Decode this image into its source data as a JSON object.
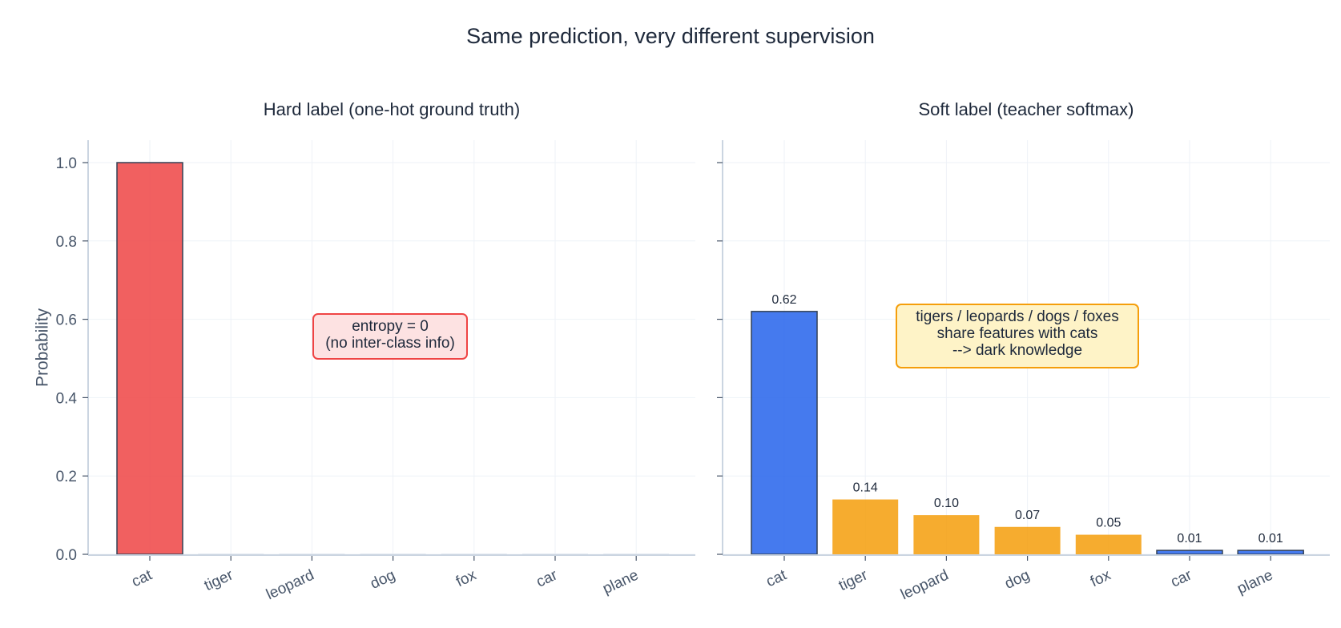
{
  "figure": {
    "title": "Same prediction, very different supervision"
  },
  "left_panel": {
    "title": "Hard label  (one-hot ground truth)",
    "ylabel": "Probability",
    "annotation_line1": "entropy = 0",
    "annotation_line2": "(no inter-class info)"
  },
  "right_panel": {
    "title": "Soft label  (teacher softmax)",
    "annotation_line1": "tigers / leopards / dogs / foxes",
    "annotation_line2": "share features with cats",
    "annotation_line3": "--> dark knowledge"
  },
  "colors": {
    "hard_bar": "#ef4444",
    "soft_target": "#2563eb",
    "soft_related": "#f59e0b",
    "soft_unrelated": "#2563eb",
    "axis": "#cbd5e1",
    "grid": "#eef2f7",
    "hard_annot_bg": "#fde2e2",
    "hard_annot_border": "#ef4444",
    "soft_annot_bg": "#fef3c7",
    "soft_annot_border": "#f59e0b"
  },
  "chart_data": [
    {
      "type": "bar",
      "title": "Hard label  (one-hot ground truth)",
      "categories": [
        "cat",
        "tiger",
        "leopard",
        "dog",
        "fox",
        "car",
        "plane"
      ],
      "values": [
        1.0,
        0,
        0,
        0,
        0,
        0,
        0
      ],
      "xlabel": "",
      "ylabel": "Probability",
      "ylim": [
        0,
        1.05
      ],
      "yticks": [
        "0.0",
        "0.2",
        "0.4",
        "0.6",
        "0.8",
        "1.0"
      ],
      "grid": true,
      "annotation": "entropy = 0\n(no inter-class info)"
    },
    {
      "type": "bar",
      "title": "Soft label  (teacher softmax)",
      "categories": [
        "cat",
        "tiger",
        "leopard",
        "dog",
        "fox",
        "car",
        "plane"
      ],
      "values": [
        0.62,
        0.14,
        0.1,
        0.07,
        0.05,
        0.01,
        0.01
      ],
      "value_labels": [
        "0.62",
        "0.14",
        "0.10",
        "0.07",
        "0.05",
        "0.01",
        "0.01"
      ],
      "bar_colors": [
        "#2563eb",
        "#f59e0b",
        "#f59e0b",
        "#f59e0b",
        "#f59e0b",
        "#2563eb",
        "#2563eb"
      ],
      "xlabel": "",
      "ylabel": "",
      "ylim": [
        0,
        1.05
      ],
      "sharey": true,
      "grid": true,
      "annotation": "tigers / leopards / dogs / foxes\nshare features with cats\n--> dark knowledge"
    }
  ]
}
